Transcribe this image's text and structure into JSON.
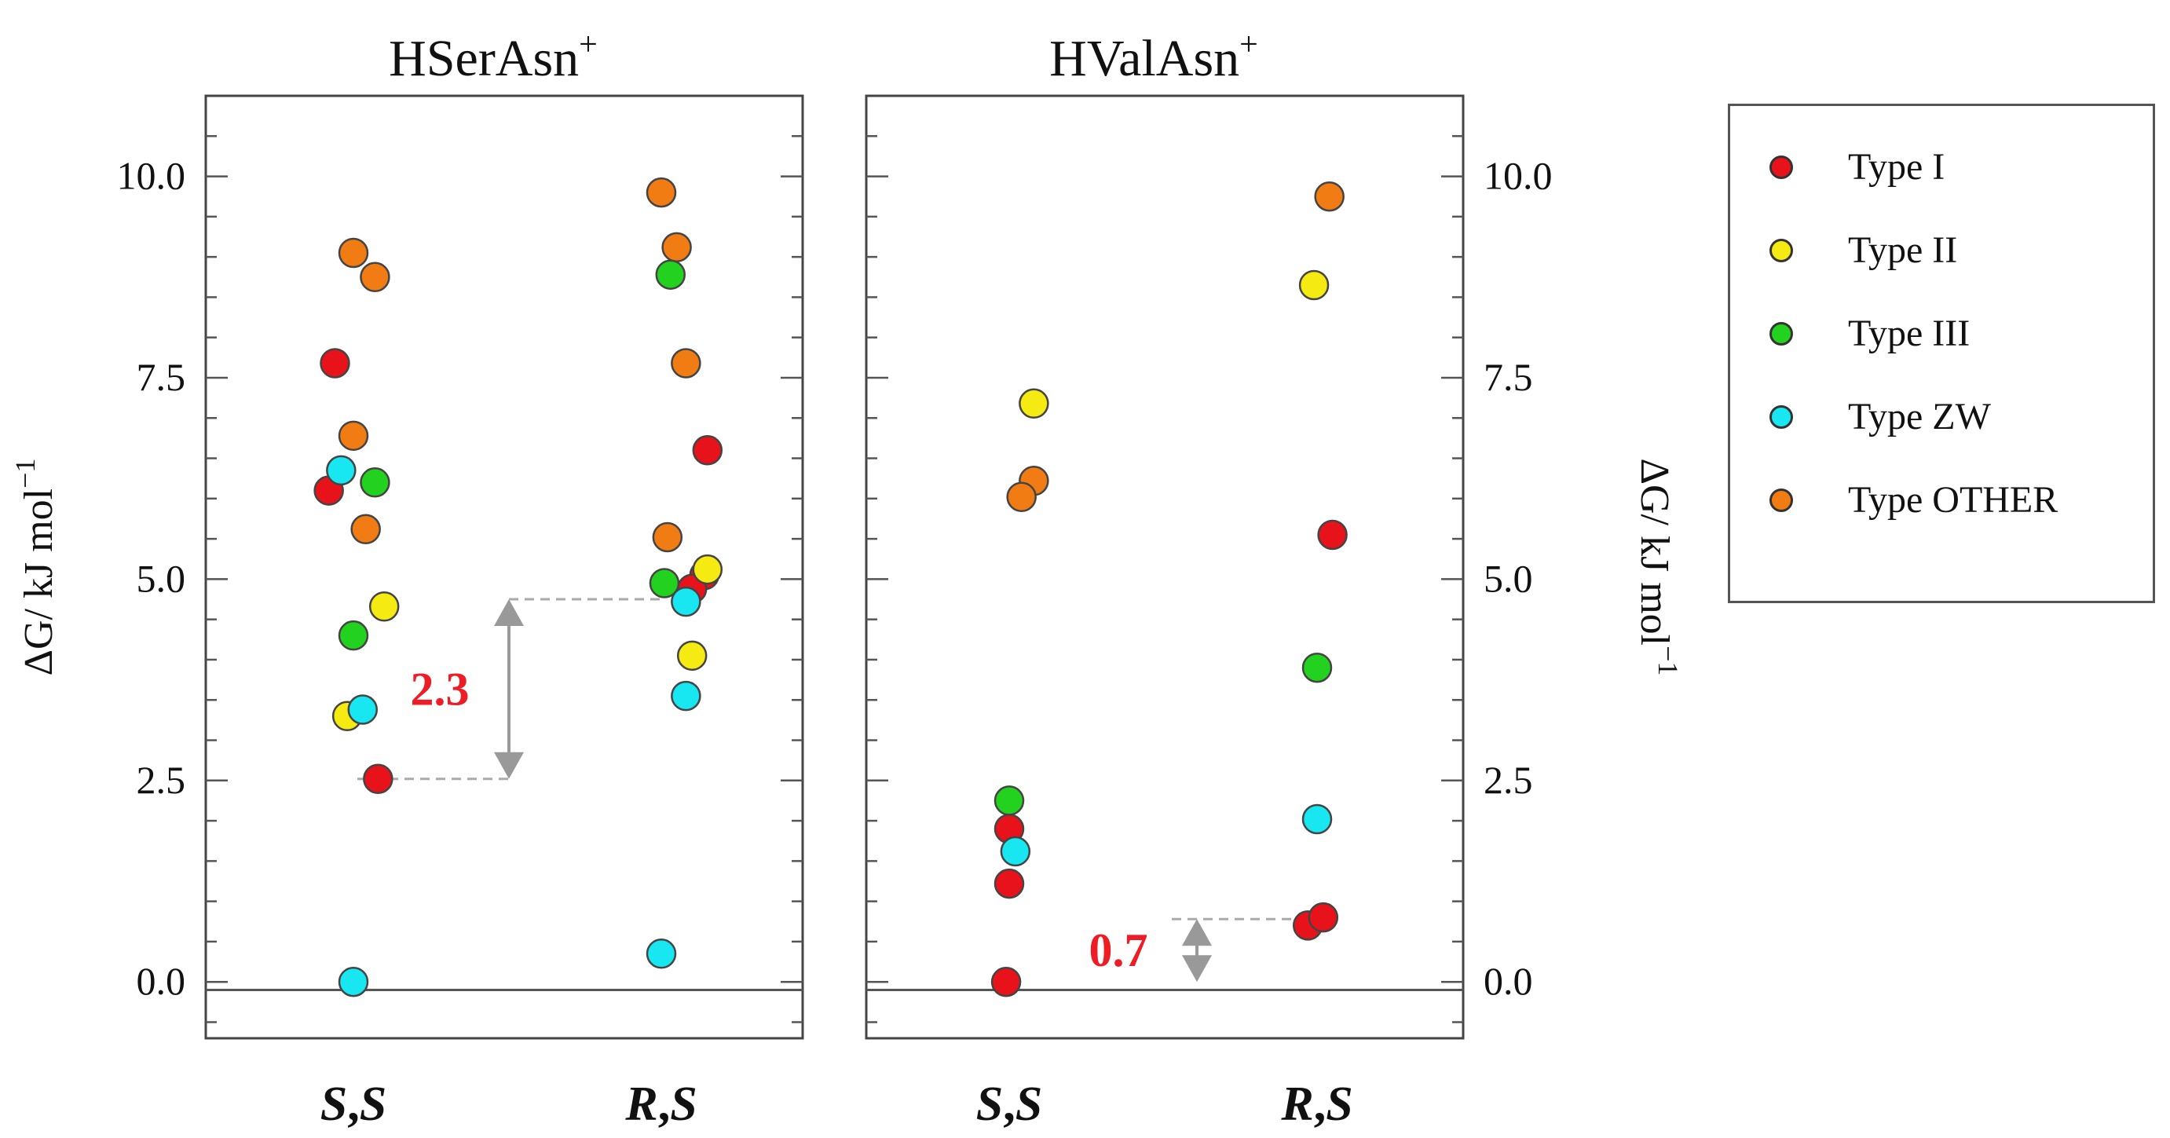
{
  "colors": {
    "Type I": "#e8131a",
    "Type II": "#f5ea12",
    "Type III": "#22d21e",
    "Type ZW": "#18e6f0",
    "Type OTHER": "#f07c13",
    "annotation": "#ee1c25",
    "arrow": "#999999"
  },
  "chart_data": [
    {
      "type": "scatter",
      "title_main": "HSerAsn",
      "title_sup": "+",
      "xlabel": "",
      "ylabel": "ΔG/ kJ mol",
      "ylabel_sup": "−1",
      "ylim": [
        -0.7,
        11.0
      ],
      "yticks": [
        "0.0",
        "2.5",
        "5.0",
        "7.5",
        "10.0"
      ],
      "categories": [
        {
          "label_a": "S",
          "label_b": "S"
        },
        {
          "label_a": "R",
          "label_b": "S"
        }
      ],
      "reference_line_y": -0.1,
      "annotation": {
        "text": "2.3",
        "from": 2.52,
        "to": 4.75
      },
      "points": [
        {
          "category": 0,
          "offset": 0.0,
          "y": 9.05,
          "type": "Type OTHER"
        },
        {
          "category": 0,
          "offset": 0.07,
          "y": 8.75,
          "type": "Type OTHER"
        },
        {
          "category": 0,
          "offset": -0.06,
          "y": 7.68,
          "type": "Type I"
        },
        {
          "category": 0,
          "offset": 0.0,
          "y": 6.78,
          "type": "Type OTHER"
        },
        {
          "category": 0,
          "offset": -0.08,
          "y": 6.1,
          "type": "Type I"
        },
        {
          "category": 0,
          "offset": 0.07,
          "y": 6.2,
          "type": "Type III"
        },
        {
          "category": 0,
          "offset": -0.04,
          "y": 6.35,
          "type": "Type ZW"
        },
        {
          "category": 0,
          "offset": 0.04,
          "y": 5.62,
          "type": "Type OTHER"
        },
        {
          "category": 0,
          "offset": 0.1,
          "y": 4.66,
          "type": "Type II"
        },
        {
          "category": 0,
          "offset": 0.0,
          "y": 4.3,
          "type": "Type III"
        },
        {
          "category": 0,
          "offset": -0.02,
          "y": 3.3,
          "type": "Type II"
        },
        {
          "category": 0,
          "offset": 0.03,
          "y": 3.38,
          "type": "Type ZW"
        },
        {
          "category": 0,
          "offset": 0.08,
          "y": 2.52,
          "type": "Type I"
        },
        {
          "category": 0,
          "offset": 0.0,
          "y": 0.0,
          "type": "Type ZW"
        },
        {
          "category": 1,
          "offset": 0.0,
          "y": 9.8,
          "type": "Type OTHER"
        },
        {
          "category": 1,
          "offset": 0.05,
          "y": 9.12,
          "type": "Type OTHER"
        },
        {
          "category": 1,
          "offset": 0.03,
          "y": 8.78,
          "type": "Type III"
        },
        {
          "category": 1,
          "offset": 0.08,
          "y": 7.68,
          "type": "Type OTHER"
        },
        {
          "category": 1,
          "offset": 0.15,
          "y": 6.6,
          "type": "Type I"
        },
        {
          "category": 1,
          "offset": 0.02,
          "y": 5.52,
          "type": "Type OTHER"
        },
        {
          "category": 1,
          "offset": 0.14,
          "y": 5.05,
          "type": "Type I"
        },
        {
          "category": 1,
          "offset": 0.1,
          "y": 4.88,
          "type": "Type I"
        },
        {
          "category": 1,
          "offset": 0.15,
          "y": 5.12,
          "type": "Type II"
        },
        {
          "category": 1,
          "offset": 0.08,
          "y": 4.72,
          "type": "Type ZW"
        },
        {
          "category": 1,
          "offset": 0.01,
          "y": 4.95,
          "type": "Type III"
        },
        {
          "category": 1,
          "offset": 0.1,
          "y": 4.05,
          "type": "Type II"
        },
        {
          "category": 1,
          "offset": 0.08,
          "y": 3.55,
          "type": "Type ZW"
        },
        {
          "category": 1,
          "offset": 0.0,
          "y": 0.35,
          "type": "Type ZW"
        }
      ]
    },
    {
      "type": "scatter",
      "title_main": "HValAsn",
      "title_sup": "+",
      "xlabel": "",
      "ylabel": "ΔG/ kJ mol",
      "ylabel_sup": "−1",
      "ylim": [
        -0.7,
        11.0
      ],
      "yticks": [
        "0.0",
        "2.5",
        "5.0",
        "7.5",
        "10.0"
      ],
      "categories": [
        {
          "label_a": "S",
          "label_b": "S"
        },
        {
          "label_a": "R",
          "label_b": "S"
        }
      ],
      "reference_line_y": -0.1,
      "annotation": {
        "text": "0.7",
        "from": 0.0,
        "to": 0.78
      },
      "points": [
        {
          "category": 0,
          "offset": 0.08,
          "y": 7.18,
          "type": "Type II"
        },
        {
          "category": 0,
          "offset": 0.08,
          "y": 6.22,
          "type": "Type OTHER"
        },
        {
          "category": 0,
          "offset": 0.04,
          "y": 6.02,
          "type": "Type OTHER"
        },
        {
          "category": 0,
          "offset": 0.0,
          "y": 2.25,
          "type": "Type III"
        },
        {
          "category": 0,
          "offset": 0.0,
          "y": 1.9,
          "type": "Type I"
        },
        {
          "category": 0,
          "offset": 0.02,
          "y": 1.62,
          "type": "Type ZW"
        },
        {
          "category": 0,
          "offset": 0.0,
          "y": 1.22,
          "type": "Type I"
        },
        {
          "category": 0,
          "offset": -0.01,
          "y": 0.0,
          "type": "Type I"
        },
        {
          "category": 1,
          "offset": 0.04,
          "y": 9.75,
          "type": "Type OTHER"
        },
        {
          "category": 1,
          "offset": -0.01,
          "y": 8.65,
          "type": "Type II"
        },
        {
          "category": 1,
          "offset": 0.05,
          "y": 5.55,
          "type": "Type I"
        },
        {
          "category": 1,
          "offset": 0.0,
          "y": 3.9,
          "type": "Type III"
        },
        {
          "category": 1,
          "offset": 0.0,
          "y": 2.02,
          "type": "Type ZW"
        },
        {
          "category": 1,
          "offset": -0.03,
          "y": 0.7,
          "type": "Type I"
        },
        {
          "category": 1,
          "offset": 0.02,
          "y": 0.8,
          "type": "Type I"
        }
      ]
    }
  ],
  "legend": {
    "items": [
      {
        "label": "Type I",
        "type": "Type I"
      },
      {
        "label": "Type II",
        "type": "Type II"
      },
      {
        "label": "Type III",
        "type": "Type III"
      },
      {
        "label": "Type ZW",
        "type": "Type ZW"
      },
      {
        "label": "Type OTHER",
        "type": "Type OTHER"
      }
    ]
  }
}
